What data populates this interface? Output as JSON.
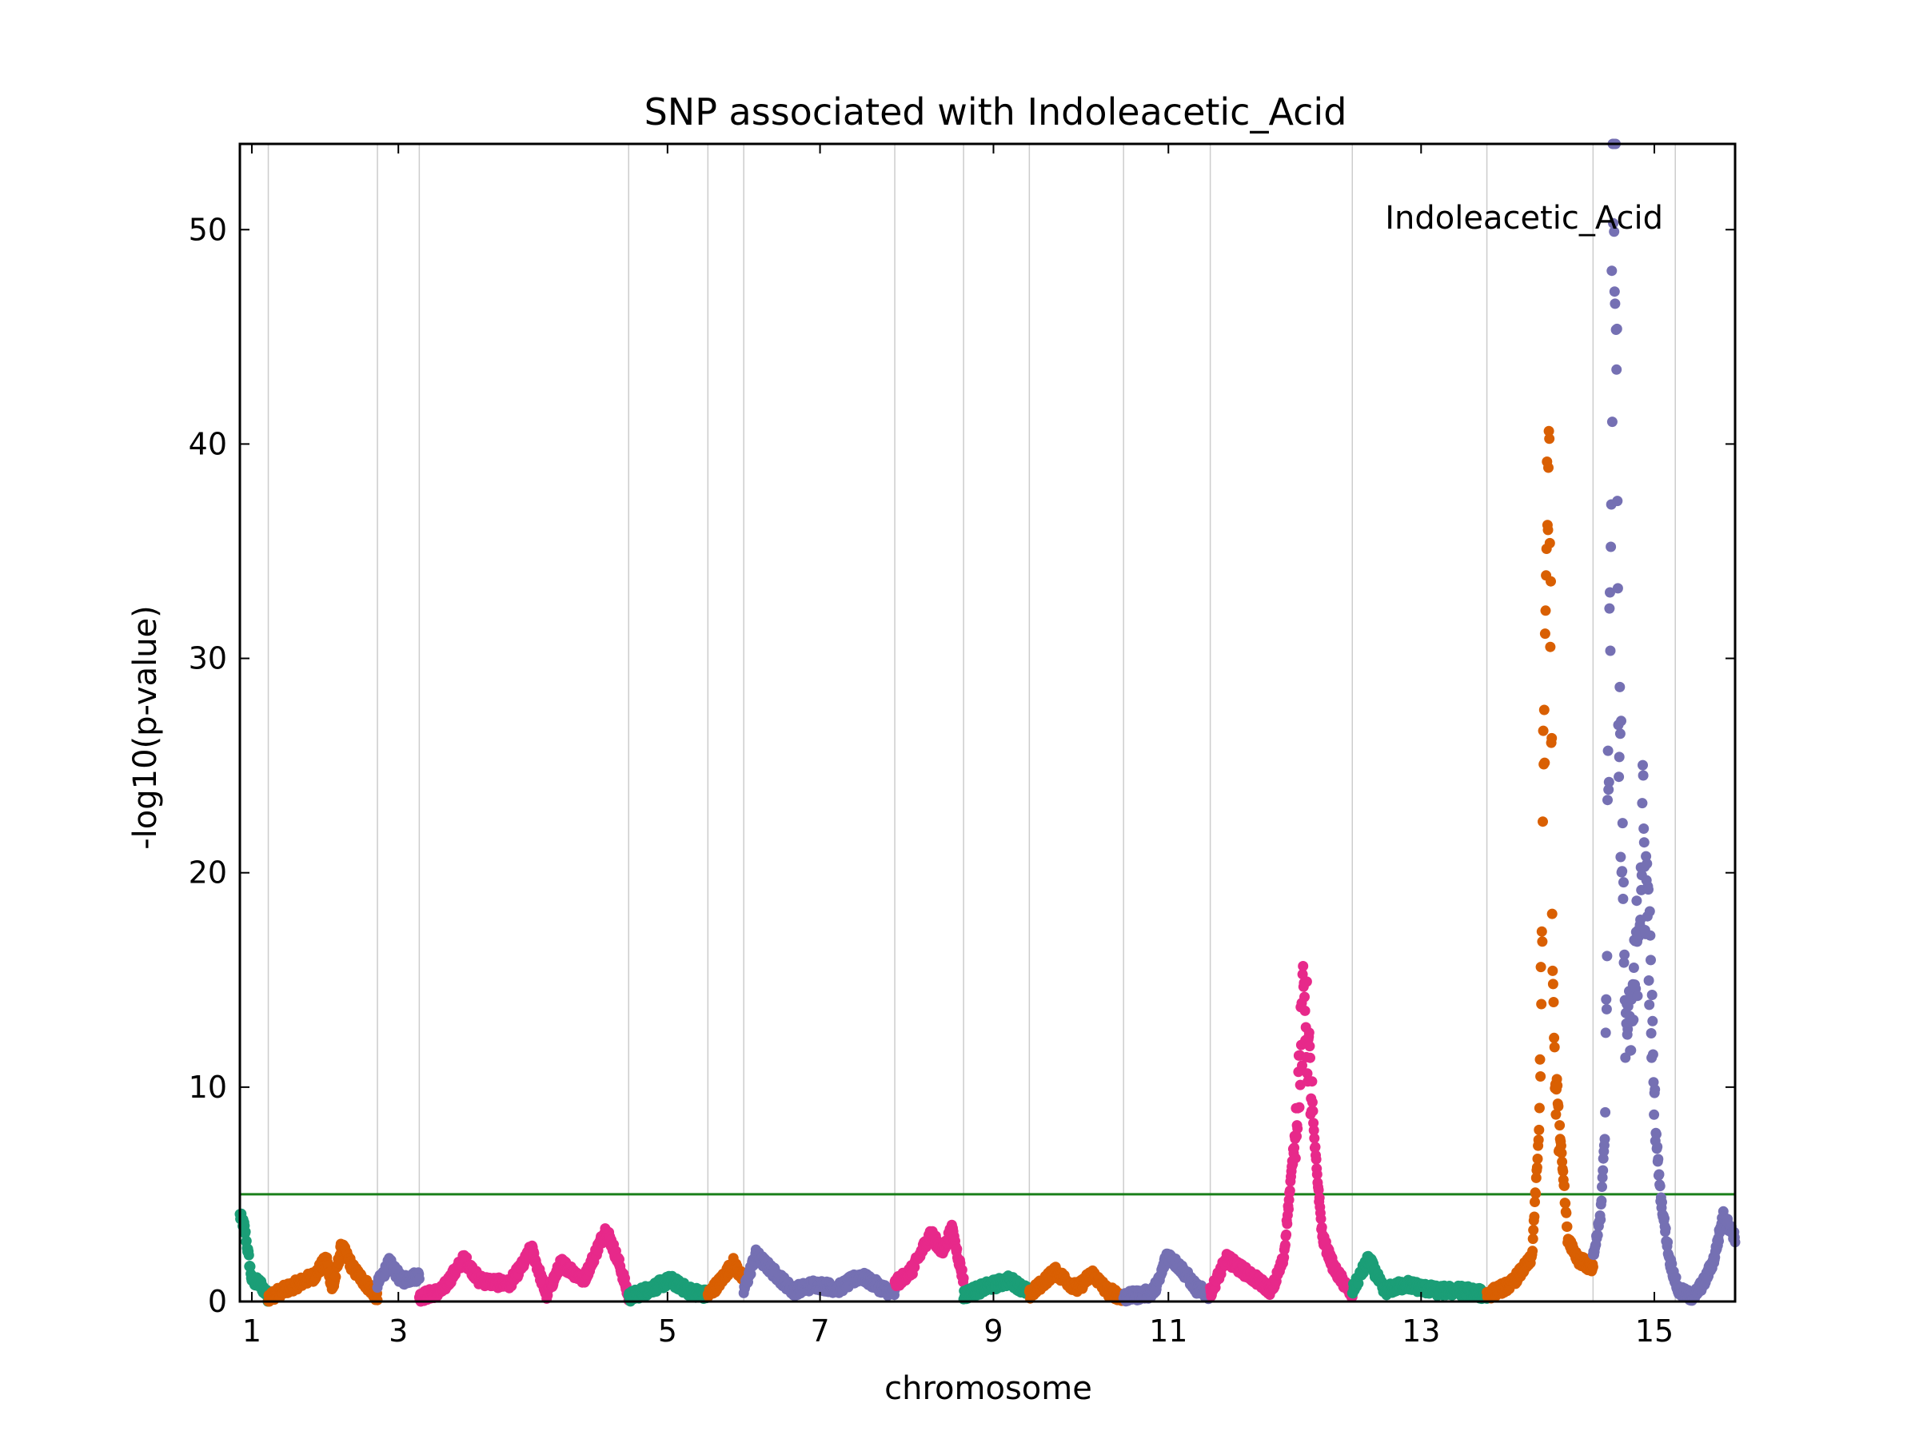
{
  "chart_data": {
    "type": "scatter",
    "title": "SNP associated with Indoleacetic_Acid",
    "xlabel": "chromosome",
    "ylabel": "-log10(p-value)",
    "annotation": "Indoleacetic_Acid",
    "ylim": [
      0,
      54
    ],
    "yticks": [
      0,
      10,
      20,
      30,
      40,
      50
    ],
    "xlim": [
      0,
      1000
    ],
    "xticks": [
      {
        "label": "1",
        "x": 8
      },
      {
        "label": "3",
        "x": 106
      },
      {
        "label": "5",
        "x": 286
      },
      {
        "label": "7",
        "x": 388
      },
      {
        "label": "9",
        "x": 504
      },
      {
        "label": "11",
        "x": 621
      },
      {
        "label": "13",
        "x": 790
      },
      {
        "label": "15",
        "x": 946
      }
    ],
    "chromosome_boundaries": [
      19,
      92,
      120,
      260,
      313,
      337,
      438,
      484,
      528,
      591,
      649,
      744,
      834,
      905,
      960
    ],
    "threshold": 5.0,
    "threshold_color": "#1a7f1a",
    "grid": true,
    "colors": [
      "#1b9e77",
      "#d95f02",
      "#7570b3",
      "#e7298a"
    ],
    "series": [
      {
        "chr": 1,
        "start": 0,
        "end": 19,
        "color_index": 0,
        "profile": [
          [
            0,
            4
          ],
          [
            3,
            3.5
          ],
          [
            8,
            1
          ],
          [
            14,
            0.8
          ],
          [
            19,
            0.2
          ]
        ]
      },
      {
        "chr": 2,
        "start": 19,
        "end": 92,
        "color_index": 1,
        "profile": [
          [
            19,
            0.2
          ],
          [
            35,
            0.7
          ],
          [
            50,
            1.2
          ],
          [
            58,
            2
          ],
          [
            62,
            0.5
          ],
          [
            68,
            2.6
          ],
          [
            76,
            1.5
          ],
          [
            86,
            0.7
          ],
          [
            92,
            0.2
          ]
        ]
      },
      {
        "chr": 3,
        "start": 92,
        "end": 120,
        "color_index": 2,
        "profile": [
          [
            92,
            0.8
          ],
          [
            100,
            1.8
          ],
          [
            108,
            1
          ],
          [
            120,
            1.2
          ]
        ]
      },
      {
        "chr": 4,
        "start": 120,
        "end": 260,
        "color_index": 3,
        "profile": [
          [
            120,
            0.2
          ],
          [
            135,
            0.5
          ],
          [
            150,
            2
          ],
          [
            160,
            1
          ],
          [
            180,
            0.8
          ],
          [
            190,
            1.8
          ],
          [
            195,
            2.5
          ],
          [
            205,
            0.3
          ],
          [
            215,
            1.8
          ],
          [
            230,
            1
          ],
          [
            245,
            3.4
          ],
          [
            255,
            1.5
          ],
          [
            260,
            0.2
          ]
        ]
      },
      {
        "chr": 5,
        "start": 260,
        "end": 313,
        "color_index": 0,
        "profile": [
          [
            260,
            0.2
          ],
          [
            275,
            0.6
          ],
          [
            288,
            1
          ],
          [
            300,
            0.5
          ],
          [
            313,
            0.3
          ]
        ]
      },
      {
        "chr": 6,
        "start": 313,
        "end": 337,
        "color_index": 1,
        "profile": [
          [
            313,
            0.3
          ],
          [
            322,
            1
          ],
          [
            330,
            1.8
          ],
          [
            337,
            1
          ]
        ]
      },
      {
        "chr": 7,
        "start": 337,
        "end": 438,
        "color_index": 2,
        "profile": [
          [
            337,
            0.5
          ],
          [
            345,
            2.2
          ],
          [
            355,
            1.5
          ],
          [
            370,
            0.5
          ],
          [
            385,
            0.8
          ],
          [
            400,
            0.6
          ],
          [
            415,
            1.2
          ],
          [
            430,
            0.6
          ],
          [
            438,
            0.4
          ]
        ]
      },
      {
        "chr": 8,
        "start": 438,
        "end": 484,
        "color_index": 3,
        "profile": [
          [
            438,
            0.8
          ],
          [
            450,
            1.5
          ],
          [
            462,
            3.2
          ],
          [
            470,
            2.3
          ],
          [
            476,
            3.4
          ],
          [
            484,
            1
          ]
        ]
      },
      {
        "chr": 9,
        "start": 484,
        "end": 528,
        "color_index": 0,
        "profile": [
          [
            484,
            0.3
          ],
          [
            500,
            0.7
          ],
          [
            515,
            1
          ],
          [
            528,
            0.4
          ]
        ]
      },
      {
        "chr": 10,
        "start": 528,
        "end": 591,
        "color_index": 1,
        "profile": [
          [
            528,
            0.3
          ],
          [
            545,
            1.4
          ],
          [
            560,
            0.6
          ],
          [
            570,
            1.3
          ],
          [
            580,
            0.5
          ],
          [
            591,
            0.2
          ]
        ]
      },
      {
        "chr": 11,
        "start": 591,
        "end": 649,
        "color_index": 2,
        "profile": [
          [
            591,
            0.2
          ],
          [
            610,
            0.4
          ],
          [
            615,
            1
          ],
          [
            620,
            2.2
          ],
          [
            630,
            1.5
          ],
          [
            640,
            0.6
          ],
          [
            649,
            0.3
          ]
        ]
      },
      {
        "chr": 12,
        "start": 649,
        "end": 744,
        "color_index": 3,
        "profile": [
          [
            649,
            0.4
          ],
          [
            660,
            2
          ],
          [
            670,
            1.5
          ],
          [
            680,
            1
          ],
          [
            690,
            0.5
          ],
          [
            698,
            2
          ],
          [
            706,
            8
          ],
          [
            712,
            14.5
          ],
          [
            718,
            8
          ],
          [
            724,
            3
          ],
          [
            732,
            1.5
          ],
          [
            744,
            0.3
          ]
        ]
      },
      {
        "chr": 13,
        "start": 744,
        "end": 834,
        "color_index": 0,
        "profile": [
          [
            744,
            0.5
          ],
          [
            755,
            2
          ],
          [
            765,
            0.5
          ],
          [
            780,
            0.8
          ],
          [
            800,
            0.5
          ],
          [
            820,
            0.5
          ],
          [
            834,
            0.3
          ]
        ]
      },
      {
        "chr": 14,
        "start": 834,
        "end": 905,
        "color_index": 1,
        "profile": [
          [
            834,
            0.3
          ],
          [
            850,
            0.8
          ],
          [
            864,
            2
          ],
          [
            869,
            8
          ],
          [
            873,
            30
          ],
          [
            876,
            40
          ],
          [
            878,
            15
          ],
          [
            880,
            10
          ],
          [
            884,
            7
          ],
          [
            888,
            3
          ],
          [
            895,
            2
          ],
          [
            905,
            1.5
          ]
        ]
      },
      {
        "chr": 15,
        "start": 905,
        "end": 1000,
        "color_index": 2,
        "profile": [
          [
            905,
            2
          ],
          [
            910,
            4
          ],
          [
            913,
            8
          ],
          [
            916,
            30
          ],
          [
            918,
            50
          ],
          [
            920,
            54
          ],
          [
            922,
            28
          ],
          [
            924,
            24
          ],
          [
            926,
            14
          ],
          [
            930,
            12
          ],
          [
            934,
            16
          ],
          [
            938,
            22
          ],
          [
            942,
            18
          ],
          [
            946,
            9
          ],
          [
            950,
            5
          ],
          [
            956,
            2
          ],
          [
            962,
            0.5
          ],
          [
            972,
            0.2
          ],
          [
            980,
            1
          ],
          [
            986,
            2
          ],
          [
            992,
            4
          ],
          [
            1000,
            3
          ]
        ]
      }
    ]
  }
}
